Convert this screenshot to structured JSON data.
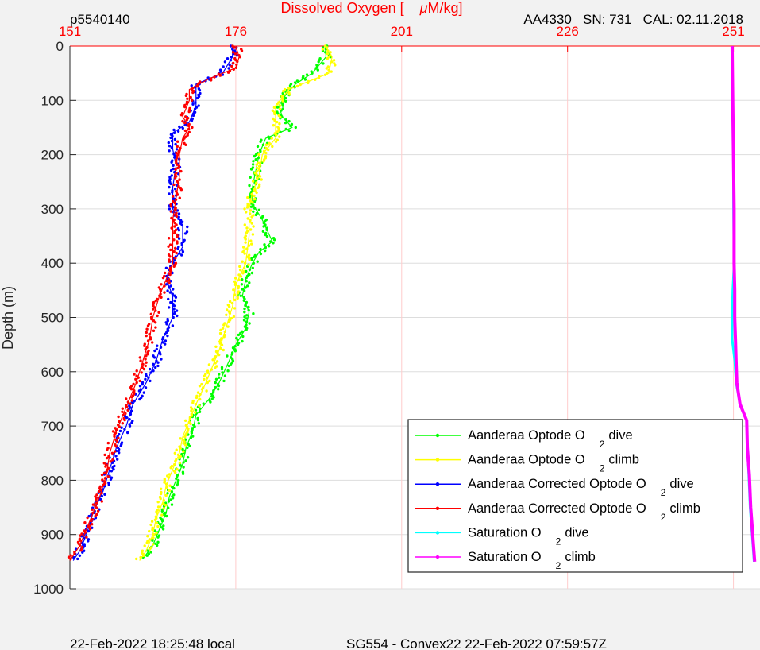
{
  "header": {
    "profile_id": "p5540140",
    "sensor_info": "AA4330   SN: 731   CAL: 02.11.2018"
  },
  "footer": {
    "local_time": "22-Feb-2022 18:25:48 local",
    "mission": "SG554 - Convex22 22-Feb-2022 07:59:57Z"
  },
  "colors": {
    "axis_top": "#ff0000",
    "grid_x": "#ffcccc",
    "grid_y": "#dddddd",
    "optode_dive": "#00ff00",
    "optode_climb": "#ffff00",
    "corrected_dive": "#0000ff",
    "corrected_climb": "#ff0000",
    "sat_dive": "#00ffff",
    "sat_climb": "#ff00ff"
  },
  "chart_data": {
    "type": "scatter",
    "xlabel_prefix": "Dissolved Oxygen [",
    "xlabel_mu": "μ",
    "xlabel_suffix": "M/kg]",
    "ylabel": "Depth (m)",
    "xlim": [
      151,
      255
    ],
    "ylim": [
      0,
      1000
    ],
    "xticks": [
      "151",
      "176",
      "201",
      "226",
      "251"
    ],
    "yticks": [
      "0",
      "100",
      "200",
      "300",
      "400",
      "500",
      "600",
      "700",
      "800",
      "900",
      "1000"
    ],
    "x_axis_position": "top",
    "y_reversed": true,
    "grid": true,
    "legend_position": "bottom-right",
    "series": [
      {
        "name": "Aanderaa Optode O",
        "sub": "2",
        "tail": "dive",
        "color_key": "optode_dive",
        "points": [
          [
            189.5,
            0
          ],
          [
            189.6,
            20
          ],
          [
            187.5,
            50
          ],
          [
            185,
            70
          ],
          [
            183.5,
            90
          ],
          [
            182.5,
            110
          ],
          [
            183,
            130
          ],
          [
            184.5,
            150
          ],
          [
            180.5,
            170
          ],
          [
            179.5,
            200
          ],
          [
            179,
            230
          ],
          [
            178.5,
            260
          ],
          [
            178.5,
            290
          ],
          [
            180,
            320
          ],
          [
            181.5,
            360
          ],
          [
            179.5,
            380
          ],
          [
            178.5,
            400
          ],
          [
            177.5,
            430
          ],
          [
            177,
            460
          ],
          [
            178,
            490
          ],
          [
            177.5,
            520
          ],
          [
            176,
            550
          ],
          [
            175,
            580
          ],
          [
            173.5,
            620
          ],
          [
            172,
            650
          ],
          [
            170,
            680
          ],
          [
            169.5,
            710
          ],
          [
            168.5,
            740
          ],
          [
            168,
            770
          ],
          [
            167,
            800
          ],
          [
            166,
            830
          ],
          [
            165.5,
            860
          ],
          [
            164.5,
            890
          ],
          [
            163.5,
            920
          ],
          [
            162,
            945
          ]
        ]
      },
      {
        "name": "Aanderaa Optode O",
        "sub": "2",
        "tail": "climb",
        "color_key": "optode_climb",
        "points": [
          [
            189.5,
            0
          ],
          [
            190.5,
            20
          ],
          [
            190,
            50
          ],
          [
            184,
            80
          ],
          [
            182,
            110
          ],
          [
            182,
            140
          ],
          [
            182,
            170
          ],
          [
            180,
            200
          ],
          [
            179.5,
            240
          ],
          [
            178.5,
            270
          ],
          [
            178,
            300
          ],
          [
            178,
            350
          ],
          [
            177.5,
            400
          ],
          [
            176,
            440
          ],
          [
            175.5,
            480
          ],
          [
            174.5,
            520
          ],
          [
            173.5,
            560
          ],
          [
            172.5,
            590
          ],
          [
            171.5,
            620
          ],
          [
            170,
            660
          ],
          [
            169,
            690
          ],
          [
            168,
            720
          ],
          [
            167.5,
            750
          ],
          [
            166.5,
            780
          ],
          [
            165.5,
            810
          ],
          [
            165,
            840
          ],
          [
            164,
            870
          ],
          [
            163.5,
            900
          ],
          [
            162.5,
            930
          ],
          [
            161.5,
            948
          ]
        ]
      },
      {
        "name": "Aanderaa Corrected Optode O",
        "sub": "2",
        "tail": "dive",
        "color_key": "corrected_dive",
        "points": [
          [
            175.5,
            0
          ],
          [
            175.5,
            20
          ],
          [
            174,
            50
          ],
          [
            170,
            70
          ],
          [
            170,
            90
          ],
          [
            170,
            110
          ],
          [
            169,
            140
          ],
          [
            166.5,
            160
          ],
          [
            166.5,
            190
          ],
          [
            167,
            220
          ],
          [
            166.5,
            260
          ],
          [
            166.5,
            300
          ],
          [
            168,
            330
          ],
          [
            168,
            370
          ],
          [
            166.5,
            400
          ],
          [
            165.5,
            430
          ],
          [
            166.5,
            460
          ],
          [
            166.5,
            500
          ],
          [
            165,
            540
          ],
          [
            164,
            580
          ],
          [
            162.5,
            620
          ],
          [
            160.5,
            660
          ],
          [
            159.5,
            700
          ],
          [
            158,
            740
          ],
          [
            157,
            780
          ],
          [
            156,
            820
          ],
          [
            154.5,
            860
          ],
          [
            153.5,
            900
          ],
          [
            152.5,
            930
          ],
          [
            151.5,
            948
          ]
        ]
      },
      {
        "name": "Aanderaa Corrected Optode O",
        "sub": "2",
        "tail": "climb",
        "color_key": "corrected_climb",
        "points": [
          [
            176,
            0
          ],
          [
            176.5,
            20
          ],
          [
            176,
            40
          ],
          [
            172,
            60
          ],
          [
            169,
            80
          ],
          [
            169,
            100
          ],
          [
            168,
            130
          ],
          [
            169,
            150
          ],
          [
            168,
            170
          ],
          [
            167.5,
            200
          ],
          [
            167.5,
            240
          ],
          [
            167,
            280
          ],
          [
            166.5,
            320
          ],
          [
            166.5,
            360
          ],
          [
            166.5,
            400
          ],
          [
            165.5,
            430
          ],
          [
            164.5,
            460
          ],
          [
            163.5,
            500
          ],
          [
            163,
            540
          ],
          [
            162,
            580
          ],
          [
            161,
            620
          ],
          [
            160,
            650
          ],
          [
            159,
            680
          ],
          [
            158,
            710
          ],
          [
            157,
            750
          ],
          [
            156.5,
            790
          ],
          [
            155.5,
            830
          ],
          [
            154.5,
            860
          ],
          [
            153.5,
            890
          ],
          [
            152.5,
            920
          ],
          [
            151,
            948
          ]
        ]
      },
      {
        "name": "Saturation O",
        "sub": "2",
        "tail": "dive",
        "color_key": "sat_dive",
        "points": [
          [
            250.8,
            0
          ],
          [
            250.9,
            100
          ],
          [
            251,
            200
          ],
          [
            251,
            300
          ],
          [
            251.1,
            400
          ],
          [
            250.9,
            450
          ],
          [
            250.8,
            500
          ],
          [
            250.8,
            540
          ],
          [
            251.2,
            580
          ],
          [
            251.4,
            620
          ],
          [
            252,
            660
          ],
          [
            253,
            690
          ],
          [
            253.1,
            740
          ],
          [
            253.3,
            790
          ],
          [
            253.5,
            850
          ],
          [
            253.8,
            900
          ],
          [
            254.1,
            950
          ]
        ]
      },
      {
        "name": "Saturation O",
        "sub": "2",
        "tail": "climb",
        "color_key": "sat_climb",
        "points": [
          [
            250.8,
            0
          ],
          [
            250.9,
            100
          ],
          [
            251,
            200
          ],
          [
            251.1,
            300
          ],
          [
            251.1,
            400
          ],
          [
            251.2,
            450
          ],
          [
            251.2,
            500
          ],
          [
            251.3,
            540
          ],
          [
            251.4,
            580
          ],
          [
            251.5,
            620
          ],
          [
            252,
            660
          ],
          [
            253,
            690
          ],
          [
            253.1,
            740
          ],
          [
            253.4,
            790
          ],
          [
            253.6,
            850
          ],
          [
            253.9,
            900
          ],
          [
            254.2,
            950
          ]
        ]
      }
    ]
  }
}
